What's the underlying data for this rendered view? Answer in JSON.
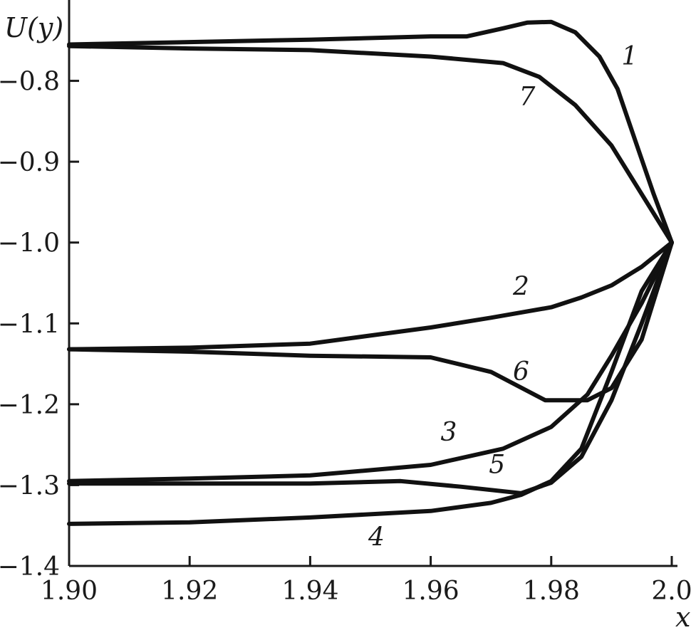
{
  "chart_data": {
    "type": "line",
    "title": "",
    "xlabel": "x",
    "ylabel": "U(y)",
    "xlim": [
      1.9,
      2.0
    ],
    "ylim": [
      -1.4,
      -0.7
    ],
    "grid": false,
    "x_ticks": [
      1.9,
      1.92,
      1.94,
      1.96,
      1.98,
      2.0
    ],
    "x_tick_labels": [
      "1.90",
      "1.92",
      "1.94",
      "1.96",
      "1.98",
      "2.0"
    ],
    "y_ticks": [
      -0.8,
      -0.9,
      -1.0,
      -1.1,
      -1.2,
      -1.3,
      -1.4
    ],
    "y_tick_labels": [
      "−0.8",
      "−0.9",
      "−1.0",
      "−1.1",
      "−1.2",
      "−1.3",
      "−1.4"
    ],
    "series": [
      {
        "name": "1",
        "x": [
          1.9,
          1.92,
          1.94,
          1.96,
          1.966,
          1.972,
          1.976,
          1.98,
          1.984,
          1.988,
          1.991,
          1.994,
          1.997,
          2.0
        ],
        "y": [
          -0.755,
          -0.752,
          -0.749,
          -0.745,
          -0.745,
          -0.735,
          -0.728,
          -0.727,
          -0.74,
          -0.77,
          -0.81,
          -0.875,
          -0.94,
          -1.0
        ],
        "label_at": [
          1.993,
          -0.78
        ]
      },
      {
        "name": "2",
        "x": [
          1.9,
          1.92,
          1.94,
          1.96,
          1.97,
          1.98,
          1.985,
          1.99,
          1.995,
          2.0
        ],
        "y": [
          -1.132,
          -1.13,
          -1.125,
          -1.105,
          -1.093,
          -1.08,
          -1.068,
          -1.053,
          -1.03,
          -1.0
        ],
        "label_at": [
          1.975,
          -1.065
        ]
      },
      {
        "name": "3",
        "x": [
          1.9,
          1.92,
          1.94,
          1.96,
          1.972,
          1.98,
          1.986,
          1.99,
          1.995,
          2.0
        ],
        "y": [
          -1.295,
          -1.292,
          -1.288,
          -1.275,
          -1.255,
          -1.228,
          -1.188,
          -1.14,
          -1.075,
          -1.0
        ],
        "label_at": [
          1.963,
          -1.245
        ]
      },
      {
        "name": "4",
        "x": [
          1.9,
          1.92,
          1.94,
          1.96,
          1.97,
          1.975,
          1.98,
          1.985,
          1.99,
          1.995,
          2.0
        ],
        "y": [
          -1.348,
          -1.346,
          -1.34,
          -1.332,
          -1.322,
          -1.312,
          -1.295,
          -1.255,
          -1.16,
          -1.06,
          -1.0
        ],
        "label_at": [
          1.951,
          -1.375
        ]
      },
      {
        "name": "5",
        "x": [
          1.9,
          1.92,
          1.94,
          1.955,
          1.965,
          1.975,
          1.98,
          1.985,
          1.99,
          1.995,
          2.0
        ],
        "y": [
          -1.298,
          -1.298,
          -1.298,
          -1.295,
          -1.302,
          -1.31,
          -1.297,
          -1.265,
          -1.195,
          -1.1,
          -1.0
        ],
        "label_at": [
          1.971,
          -1.285
        ]
      },
      {
        "name": "6",
        "x": [
          1.9,
          1.92,
          1.94,
          1.96,
          1.97,
          1.979,
          1.986,
          1.99,
          1.995,
          2.0
        ],
        "y": [
          -1.132,
          -1.135,
          -1.14,
          -1.142,
          -1.16,
          -1.195,
          -1.195,
          -1.18,
          -1.12,
          -1.0
        ],
        "label_at": [
          1.975,
          -1.17
        ]
      },
      {
        "name": "7",
        "x": [
          1.9,
          1.92,
          1.94,
          1.96,
          1.972,
          1.978,
          1.984,
          1.99,
          1.995,
          2.0
        ],
        "y": [
          -0.757,
          -0.76,
          -0.762,
          -0.77,
          -0.778,
          -0.795,
          -0.83,
          -0.88,
          -0.94,
          -1.0
        ],
        "label_at": [
          1.976,
          -0.83
        ]
      }
    ]
  }
}
